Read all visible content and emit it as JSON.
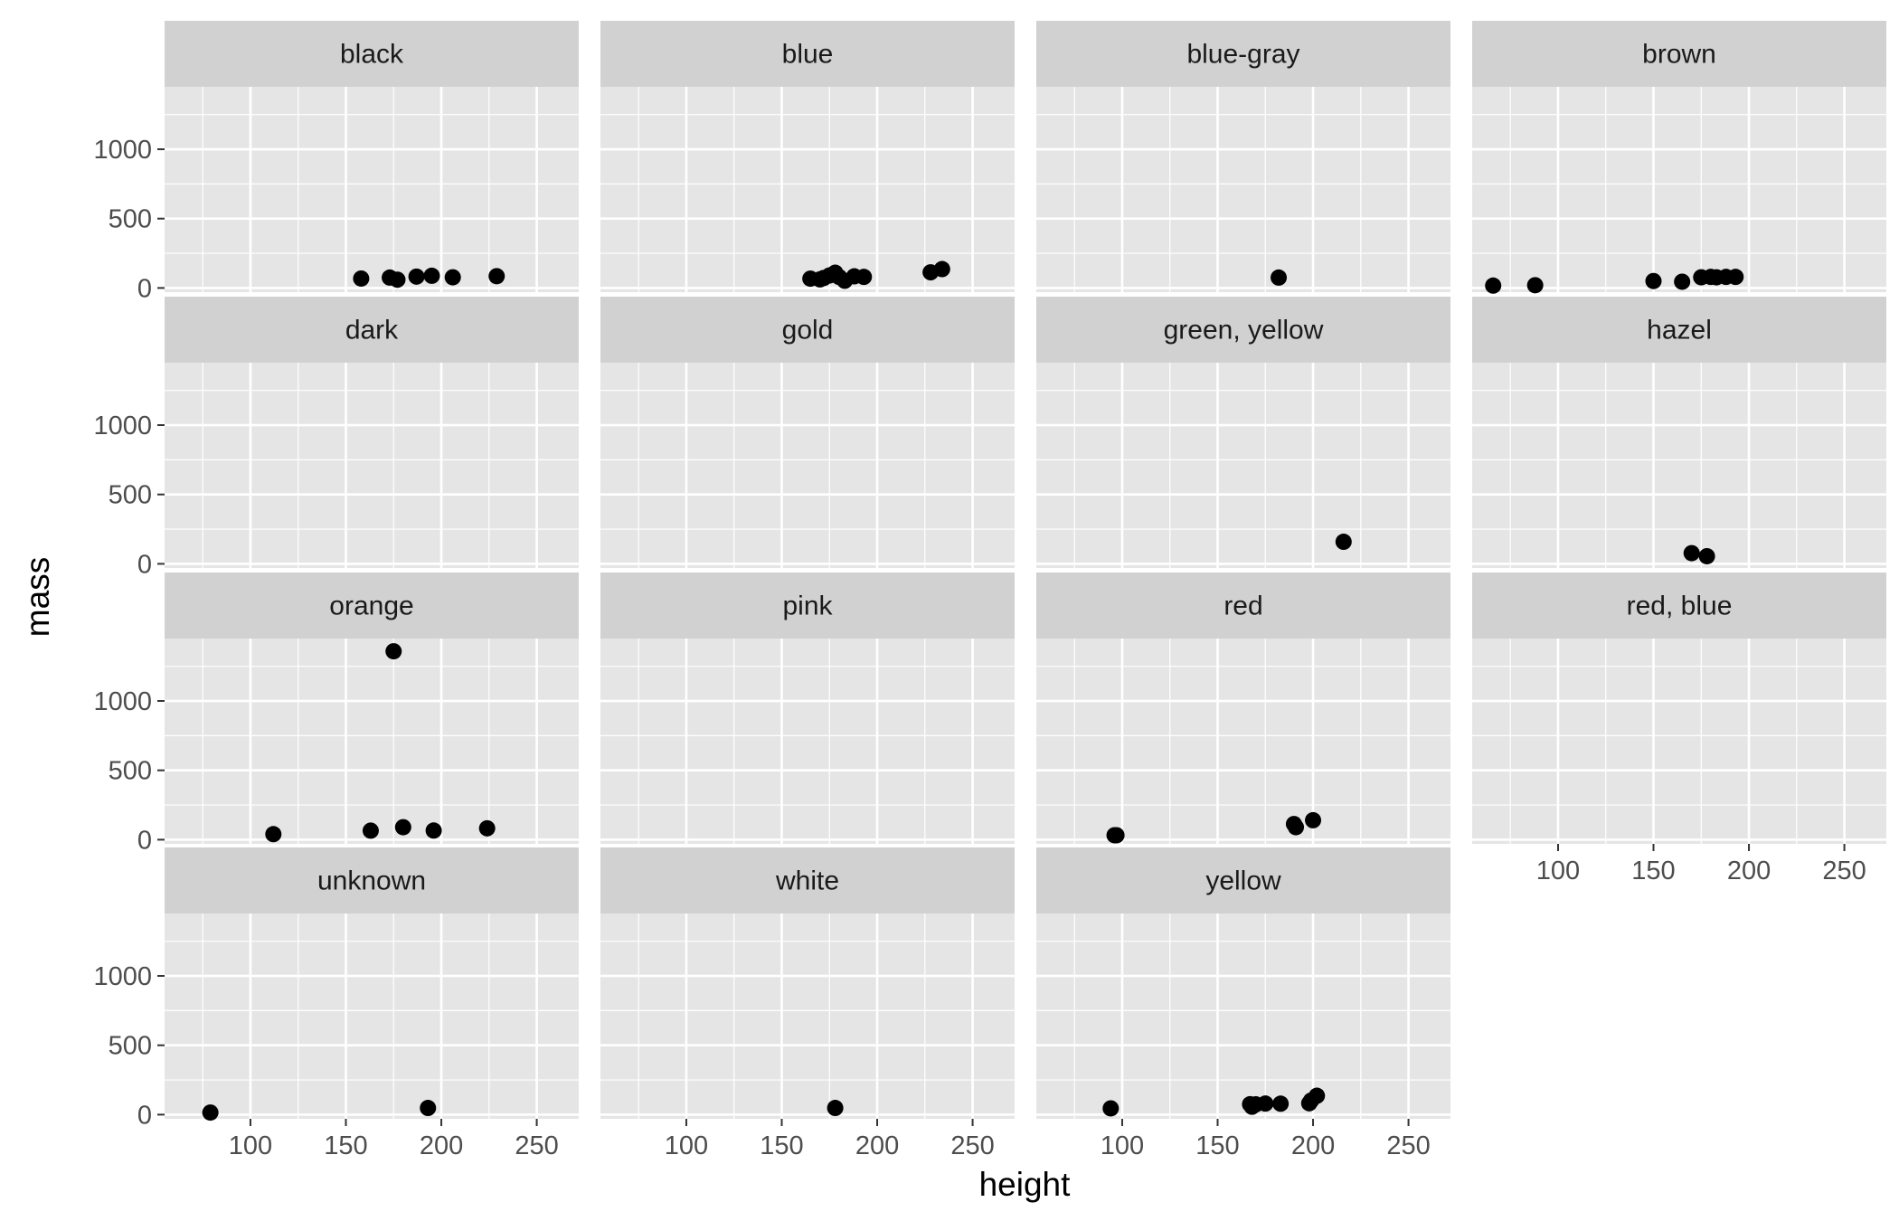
{
  "chart_data": {
    "type": "scatter",
    "facet_by": "eye_color",
    "xlabel": "height",
    "ylabel": "mass",
    "xlim": [
      55,
      272
    ],
    "ylim": [
      -30,
      1450
    ],
    "x_ticks": [
      100,
      150,
      200,
      250
    ],
    "y_ticks": [
      0,
      500,
      1000
    ],
    "grid": true,
    "point_color": "#000000",
    "panel_bg": "#e5e5e5",
    "strip_bg": "#d1d1d1",
    "grid_color": "#ffffff",
    "facets": [
      {
        "label": "black",
        "points": [
          [
            158,
            68
          ],
          [
            173,
            75
          ],
          [
            177,
            60
          ],
          [
            187,
            82
          ],
          [
            195,
            88
          ],
          [
            206,
            77
          ],
          [
            229,
            85
          ]
        ]
      },
      {
        "label": "blue",
        "points": [
          [
            165,
            67
          ],
          [
            170,
            62
          ],
          [
            172,
            72
          ],
          [
            175,
            90
          ],
          [
            178,
            110
          ],
          [
            180,
            80
          ],
          [
            183,
            52
          ],
          [
            188,
            84
          ],
          [
            193,
            80
          ],
          [
            228,
            113
          ],
          [
            234,
            136
          ]
        ]
      },
      {
        "label": "blue-gray",
        "points": [
          [
            182,
            75
          ]
        ]
      },
      {
        "label": "brown",
        "points": [
          [
            66,
            17
          ],
          [
            88,
            20
          ],
          [
            150,
            50
          ],
          [
            165,
            45
          ],
          [
            175,
            77
          ],
          [
            180,
            80
          ],
          [
            183,
            77
          ],
          [
            188,
            80
          ],
          [
            193,
            80
          ]
        ]
      },
      {
        "label": "dark",
        "points": []
      },
      {
        "label": "gold",
        "points": []
      },
      {
        "label": "green, yellow",
        "points": [
          [
            216,
            159
          ]
        ]
      },
      {
        "label": "hazel",
        "points": [
          [
            170,
            77
          ],
          [
            178,
            55
          ]
        ]
      },
      {
        "label": "orange",
        "points": [
          [
            112,
            40
          ],
          [
            163,
            65
          ],
          [
            175,
            1358
          ],
          [
            180,
            90
          ],
          [
            196,
            66
          ],
          [
            224,
            82
          ]
        ]
      },
      {
        "label": "pink",
        "points": []
      },
      {
        "label": "red",
        "points": [
          [
            96,
            32
          ],
          [
            97,
            32
          ],
          [
            190,
            113
          ],
          [
            191,
            90
          ],
          [
            200,
            140
          ]
        ]
      },
      {
        "label": "red, blue",
        "points": []
      },
      {
        "label": "unknown",
        "points": [
          [
            79,
            15
          ],
          [
            193,
            48
          ]
        ]
      },
      {
        "label": "white",
        "points": [
          [
            178,
            48
          ]
        ]
      },
      {
        "label": "yellow",
        "points": [
          [
            94,
            45
          ],
          [
            167,
            75
          ],
          [
            168,
            57
          ],
          [
            170,
            74
          ],
          [
            175,
            80
          ],
          [
            183,
            79
          ],
          [
            198,
            82
          ],
          [
            199,
            102
          ],
          [
            202,
            136
          ]
        ]
      }
    ]
  }
}
